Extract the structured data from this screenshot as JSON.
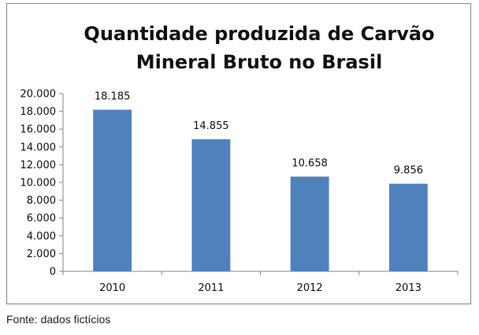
{
  "chart_data": {
    "type": "bar",
    "title_lines": [
      "Quantidade produzida de Carvão",
      "Mineral Bruto no Brasil"
    ],
    "categories": [
      "2010",
      "2011",
      "2012",
      "2013"
    ],
    "values": [
      18185,
      14855,
      10658,
      9856
    ],
    "value_labels": [
      "18.185",
      "14.855",
      "10.658",
      "9.856"
    ],
    "ylim": [
      0,
      20000
    ],
    "y_ticks": [
      0,
      2000,
      4000,
      6000,
      8000,
      10000,
      12000,
      14000,
      16000,
      18000,
      20000
    ],
    "y_tick_labels": [
      "0",
      "2.000",
      "4.000",
      "6.000",
      "8.000",
      "10.000",
      "12.000",
      "14.000",
      "16.000",
      "18.000",
      "20.000"
    ],
    "xlabel": "",
    "ylabel": "",
    "grid": false,
    "legend": "none",
    "bar_color": "#4f81bd"
  },
  "source": "Fonte: dados fictícios"
}
